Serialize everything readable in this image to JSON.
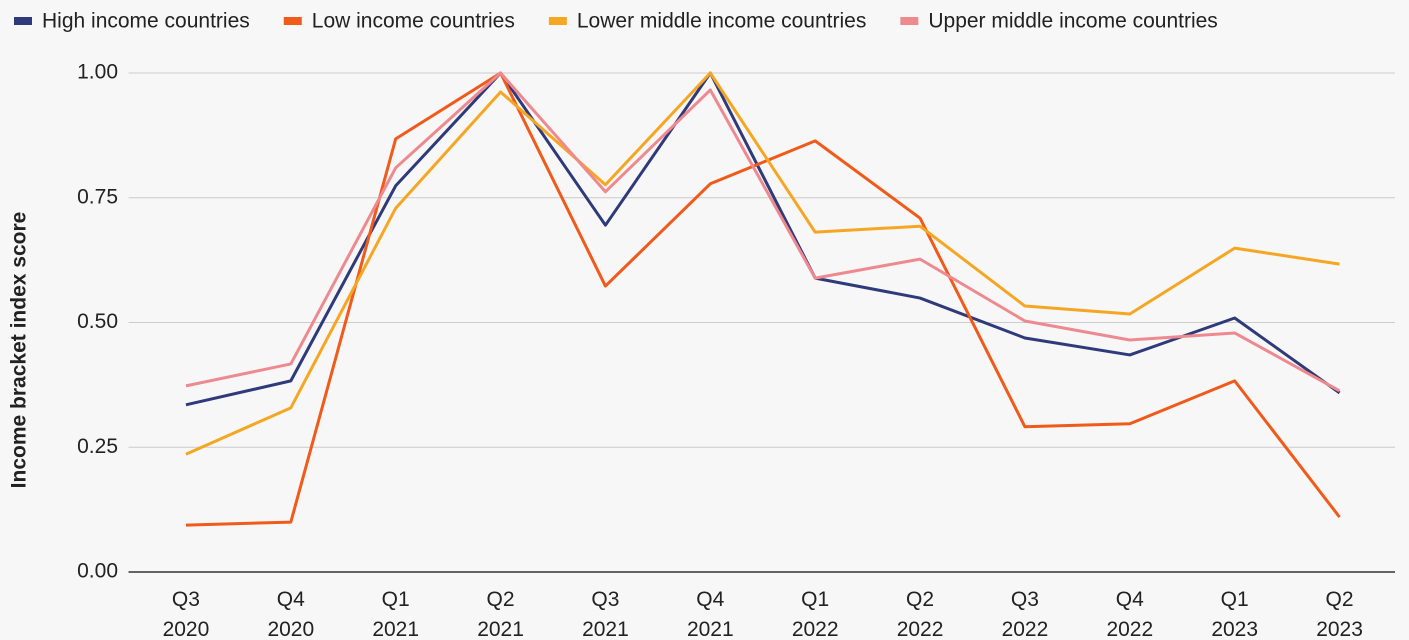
{
  "chart_data": {
    "type": "line",
    "y_label": "Income bracket index score",
    "categories": [
      "Q3 2020",
      "Q4 2020",
      "Q1 2021",
      "Q2 2021",
      "Q3 2021",
      "Q4 2021",
      "Q1 2022",
      "Q2 2022",
      "Q3 2022",
      "Q4 2022",
      "Q1 2023",
      "Q2 2023"
    ],
    "series": [
      {
        "name": "High income countries",
        "color": "#2e3a7a",
        "values": [
          0.335,
          0.383,
          0.774,
          1.0,
          0.695,
          1.0,
          0.589,
          0.549,
          0.469,
          0.435,
          0.509,
          0.359
        ]
      },
      {
        "name": "Low income countries",
        "color": "#f05a1a",
        "values": [
          0.094,
          0.1,
          0.868,
          1.0,
          0.573,
          0.778,
          0.864,
          0.709,
          0.291,
          0.297,
          0.383,
          0.11
        ]
      },
      {
        "name": "Lower middle income countries",
        "color": "#f5a623",
        "values": [
          0.236,
          0.329,
          0.729,
          0.962,
          0.776,
          1.0,
          0.681,
          0.693,
          0.533,
          0.517,
          0.649,
          0.617
        ]
      },
      {
        "name": "Upper middle income countries",
        "color": "#ee8a8f",
        "values": [
          0.373,
          0.417,
          0.81,
          1.0,
          0.762,
          0.966,
          0.589,
          0.627,
          0.503,
          0.465,
          0.479,
          0.363
        ]
      }
    ],
    "ylim": [
      0,
      1
    ],
    "yticks": [
      {
        "value": 0,
        "label": "0.00"
      },
      {
        "value": 0.25,
        "label": "0.25"
      },
      {
        "value": 0.5,
        "label": "0.50"
      },
      {
        "value": 0.75,
        "label": "0.75"
      },
      {
        "value": 1,
        "label": "1.00"
      }
    ],
    "grid": true,
    "legend": "top"
  }
}
